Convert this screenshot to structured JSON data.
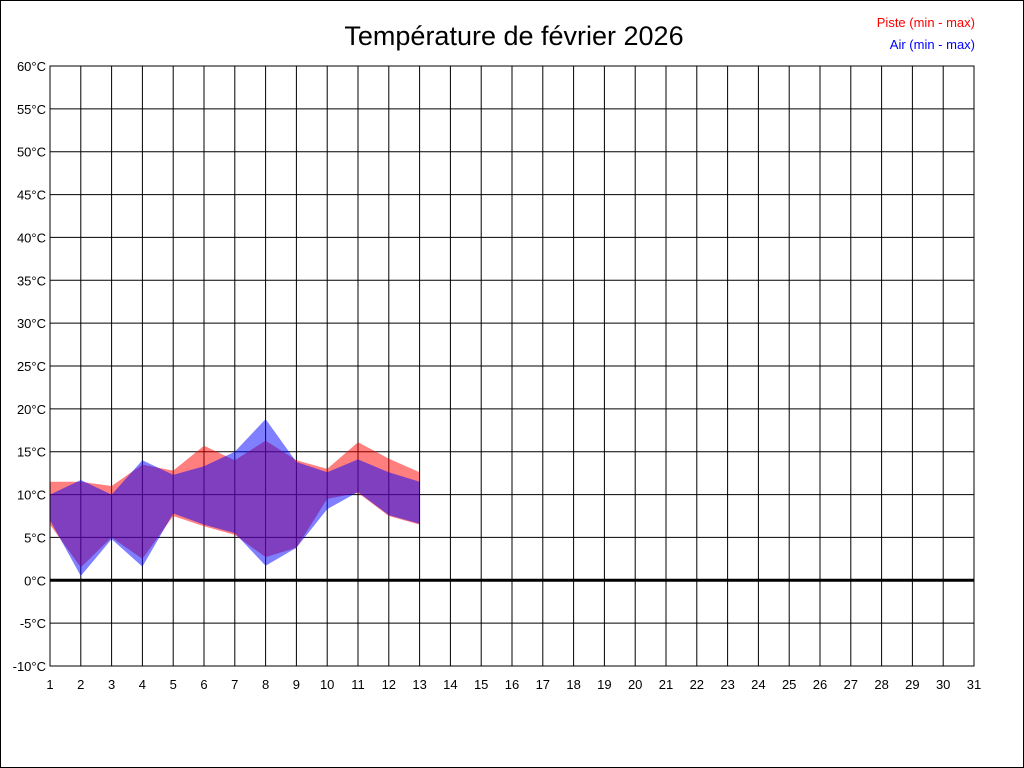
{
  "chart_data": {
    "type": "area",
    "title": "Température de février 2026",
    "xlabel": "",
    "ylabel": "",
    "x": [
      1,
      2,
      3,
      4,
      5,
      6,
      7,
      8,
      9,
      10,
      11,
      12,
      13,
      14,
      15,
      16,
      17,
      18,
      19,
      20,
      21,
      22,
      23,
      24,
      25,
      26,
      27,
      28,
      29,
      30,
      31
    ],
    "x_ticks": [
      "1",
      "2",
      "3",
      "4",
      "5",
      "6",
      "7",
      "8",
      "9",
      "10",
      "11",
      "12",
      "13",
      "14",
      "15",
      "16",
      "17",
      "18",
      "19",
      "20",
      "21",
      "22",
      "23",
      "24",
      "25",
      "26",
      "27",
      "28",
      "29",
      "30",
      "31"
    ],
    "xlim": [
      1,
      31
    ],
    "y_ticks": [
      "-10°C",
      "-5°C",
      "0°C",
      "5°C",
      "10°C",
      "15°C",
      "20°C",
      "25°C",
      "30°C",
      "35°C",
      "40°C",
      "45°C",
      "50°C",
      "55°C",
      "60°C"
    ],
    "ylim": [
      -10,
      60
    ],
    "grid": true,
    "legend_position": "top-right",
    "series": [
      {
        "name": "Piste (min - max)",
        "color": "#ff0000",
        "x": [
          1,
          2,
          3,
          4,
          5,
          6,
          7,
          8,
          9,
          10,
          11,
          12,
          13
        ],
        "min": [
          6.5,
          1.5,
          5.0,
          2.5,
          7.5,
          6.3,
          5.3,
          2.7,
          3.8,
          9.5,
          10.2,
          7.5,
          6.5
        ],
        "max": [
          11.5,
          11.5,
          11.0,
          13.5,
          12.8,
          15.7,
          14.0,
          16.3,
          14.0,
          13.0,
          16.1,
          14.2,
          12.6
        ]
      },
      {
        "name": "Air (min - max)",
        "color": "#0000ff",
        "x": [
          1,
          2,
          3,
          4,
          5,
          6,
          7,
          8,
          9,
          10,
          11,
          12,
          13
        ],
        "min": [
          7.0,
          0.5,
          4.8,
          1.6,
          7.8,
          6.5,
          5.5,
          1.7,
          3.8,
          8.3,
          10.3,
          7.6,
          6.6
        ],
        "max": [
          10.0,
          11.7,
          10.0,
          14.0,
          12.3,
          13.3,
          15.0,
          18.8,
          13.8,
          12.6,
          14.1,
          12.6,
          11.5
        ]
      }
    ]
  }
}
